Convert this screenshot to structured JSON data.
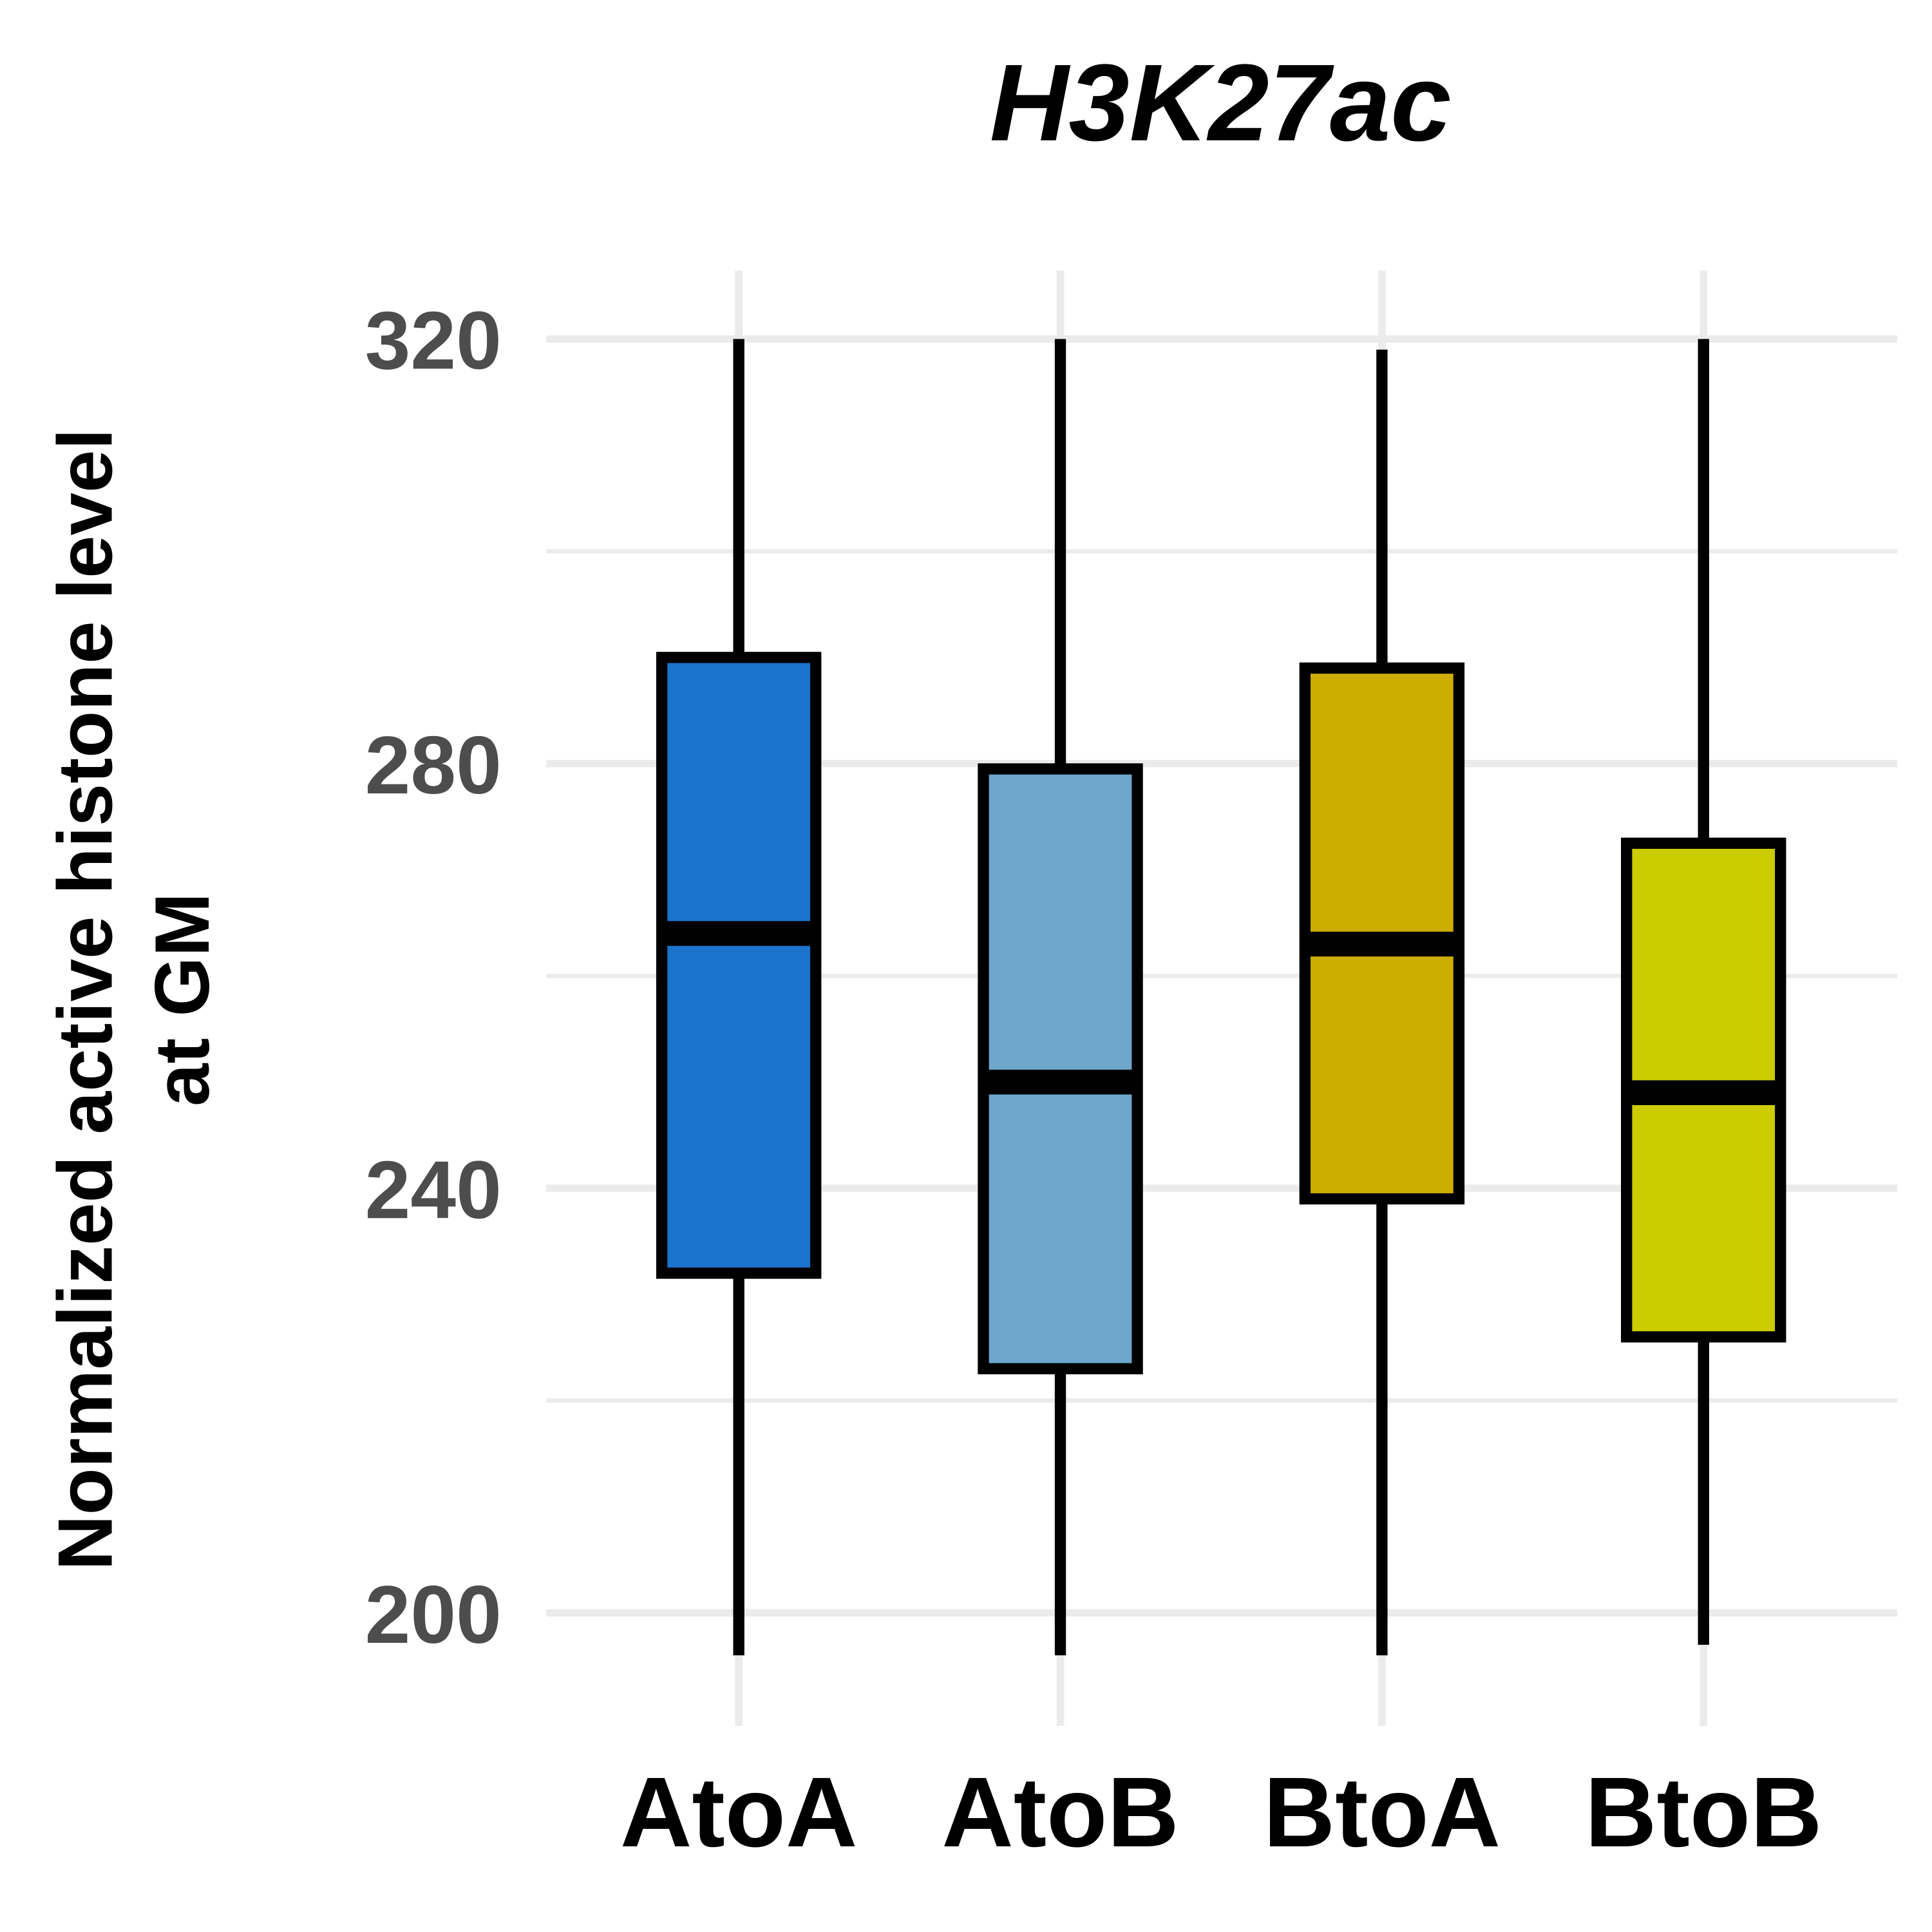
{
  "chart_data": {
    "type": "boxplot",
    "title": "H3K27ac",
    "xlabel": "",
    "ylabel_lines": [
      "Normalized active histone level",
      "at GM"
    ],
    "ylim": [
      193,
      327
    ],
    "yticks": [
      200,
      240,
      280,
      320
    ],
    "grid": true,
    "legend": "none",
    "categories": [
      "AtoA",
      "AtoB",
      "BtoA",
      "BtoB"
    ],
    "colors": [
      "#1a73cc",
      "#6ea6cc",
      "#ccad00",
      "#cccc00"
    ],
    "boxes": [
      {
        "name": "AtoA",
        "whisker_low": 196,
        "q1": 232,
        "median": 264,
        "q3": 290,
        "whisker_high": 320
      },
      {
        "name": "AtoB",
        "whisker_low": 196,
        "q1": 223,
        "median": 250,
        "q3": 279.5,
        "whisker_high": 320
      },
      {
        "name": "BtoA",
        "whisker_low": 196,
        "q1": 239,
        "median": 263,
        "q3": 289,
        "whisker_high": 319
      },
      {
        "name": "BtoB",
        "whisker_low": 197,
        "q1": 226,
        "median": 249,
        "q3": 272.5,
        "whisker_high": 320
      }
    ]
  }
}
